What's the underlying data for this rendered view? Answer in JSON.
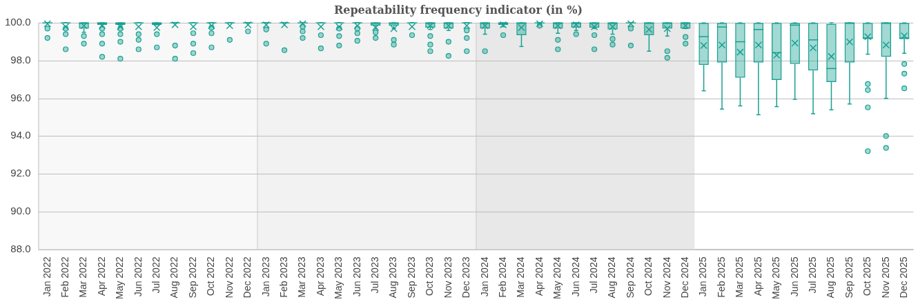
{
  "chart_data": {
    "type": "box",
    "title": "Repeatability frequency indicator (in %)",
    "categories": [
      "Jan 2022",
      "Feb 2022",
      "Mar 2022",
      "Apr 2022",
      "May 2022",
      "Jun 2022",
      "Jul 2022",
      "Aug 2022",
      "Sep 2022",
      "Oct 2022",
      "Nov 2022",
      "Dec 2022",
      "Jan 2023",
      "Feb 2023",
      "Mar 2023",
      "Apr 2023",
      "May 2023",
      "Jun 2023",
      "Jul 2023",
      "Aug 2023",
      "Sep 2023",
      "Oct 2023",
      "Nov 2023",
      "Dec 2023",
      "Jan 2024",
      "Feb 2024",
      "Mar 2024",
      "Apr 2024",
      "May 2024",
      "Jun 2024",
      "Jul 2024",
      "Aug 2024",
      "Sep 2024",
      "Oct 2024",
      "Nov 2024",
      "Dec 2024",
      "Jan 2025",
      "Feb 2025",
      "Mar 2025",
      "Apr 2025",
      "May 2025",
      "Jun 2025",
      "Jul 2025",
      "Aug 2025",
      "Sep 2025",
      "Oct 2025",
      "Nov 2025",
      "Dec 2025"
    ],
    "color": "#16a092",
    "boxes": [
      {
        "low": 100,
        "q1": 100,
        "median": 100,
        "q3": 100,
        "high": 100,
        "mean": 99.95,
        "outliers": [
          99.7,
          99.2
        ]
      },
      {
        "low": 100,
        "q1": 100,
        "median": 100,
        "q3": 100,
        "high": 100,
        "mean": 99.8,
        "outliers": [
          99.7,
          99.4,
          98.6
        ]
      },
      {
        "low": 99.5,
        "q1": 99.7,
        "median": 100,
        "q3": 100,
        "high": 100,
        "mean": 99.85,
        "outliers": [
          99.3,
          98.9
        ]
      },
      {
        "low": 99.8,
        "q1": 99.9,
        "median": 100,
        "q3": 100,
        "high": 100,
        "mean": 99.85,
        "outliers": [
          99.7,
          99.4,
          98.9,
          98.2
        ]
      },
      {
        "low": 99.8,
        "q1": 99.9,
        "median": 100,
        "q3": 100,
        "high": 100,
        "mean": 99.8,
        "outliers": [
          99.7,
          99.4,
          99.0,
          98.1
        ]
      },
      {
        "low": 100,
        "q1": 100,
        "median": 100,
        "q3": 100,
        "high": 100,
        "mean": 99.8,
        "outliers": [
          99.4,
          99.1,
          98.6
        ]
      },
      {
        "low": 99.9,
        "q1": 99.9,
        "median": 100,
        "q3": 100,
        "high": 100,
        "mean": 99.75,
        "outliers": [
          99.4,
          98.7
        ]
      },
      {
        "low": 100,
        "q1": 100,
        "median": 100,
        "q3": 100,
        "high": 100,
        "mean": 99.9,
        "outliers": [
          98.8,
          98.1
        ]
      },
      {
        "low": 100,
        "q1": 100,
        "median": 100,
        "q3": 100,
        "high": 100,
        "mean": 99.8,
        "outliers": [
          99.45,
          98.9,
          98.4
        ]
      },
      {
        "low": 100,
        "q1": 100,
        "median": 100,
        "q3": 100,
        "high": 100,
        "mean": 99.85,
        "outliers": [
          99.75,
          99.45,
          98.7
        ]
      },
      {
        "low": 100,
        "q1": 100,
        "median": 100,
        "q3": 100,
        "high": 100,
        "mean": 99.85,
        "outliers": [
          99.1
        ]
      },
      {
        "low": 100,
        "q1": 100,
        "median": 100,
        "q3": 100,
        "high": 100,
        "mean": 99.9,
        "outliers": [
          99.55
        ]
      },
      {
        "low": 100,
        "q1": 100,
        "median": 100,
        "q3": 100,
        "high": 100,
        "mean": 99.9,
        "outliers": [
          99.65,
          98.9
        ]
      },
      {
        "low": 100,
        "q1": 100,
        "median": 100,
        "q3": 100,
        "high": 100,
        "mean": 99.9,
        "outliers": [
          98.55
        ]
      },
      {
        "low": 100,
        "q1": 100,
        "median": 100,
        "q3": 100,
        "high": 100,
        "mean": 99.95,
        "outliers": [
          99.8,
          99.55,
          99.2
        ]
      },
      {
        "low": 100,
        "q1": 100,
        "median": 100,
        "q3": 100,
        "high": 100,
        "mean": 99.8,
        "outliers": [
          99.35,
          98.65
        ]
      },
      {
        "low": 100,
        "q1": 100,
        "median": 100,
        "q3": 100,
        "high": 100,
        "mean": 99.8,
        "outliers": [
          99.7,
          99.3,
          98.8
        ]
      },
      {
        "low": 100,
        "q1": 100,
        "median": 100,
        "q3": 100,
        "high": 100,
        "mean": 99.85,
        "outliers": [
          99.7,
          99.45,
          99.05
        ]
      },
      {
        "low": 99.7,
        "q1": 99.85,
        "median": 100,
        "q3": 100,
        "high": 100,
        "mean": 99.75,
        "outliers": [
          99.5,
          99.2
        ]
      },
      {
        "low": 99.7,
        "q1": 99.85,
        "median": 100,
        "q3": 100,
        "high": 100,
        "mean": 99.7,
        "outliers": [
          99.1,
          98.85
        ]
      },
      {
        "low": 100,
        "q1": 100,
        "median": 100,
        "q3": 100,
        "high": 100,
        "mean": 99.8,
        "outliers": [
          99.35
        ]
      },
      {
        "low": 99.65,
        "q1": 99.75,
        "median": 100,
        "q3": 100,
        "high": 100,
        "mean": 99.85,
        "outliers": [
          99.3,
          98.85,
          98.5
        ]
      },
      {
        "low": 99.6,
        "q1": 99.7,
        "median": 100,
        "q3": 100,
        "high": 100,
        "mean": 99.85,
        "outliers": [
          99.0,
          98.25
        ]
      },
      {
        "low": 100,
        "q1": 100,
        "median": 100,
        "q3": 100,
        "high": 100,
        "mean": 99.85,
        "outliers": [
          99.6,
          99.2,
          98.5
        ]
      },
      {
        "low": 99.4,
        "q1": 99.7,
        "median": 100,
        "q3": 100,
        "high": 100,
        "mean": 99.85,
        "outliers": [
          98.5
        ]
      },
      {
        "low": 99.8,
        "q1": 99.9,
        "median": 100,
        "q3": 100,
        "high": 100,
        "mean": 99.9,
        "outliers": [
          99.35
        ]
      },
      {
        "low": 98.75,
        "q1": 99.35,
        "median": 100,
        "q3": 100,
        "high": 100,
        "mean": 99.75
      },
      {
        "low": 100,
        "q1": 100,
        "median": 100,
        "q3": 100,
        "high": 100,
        "mean": 99.95,
        "outliers": [
          99.85
        ]
      },
      {
        "low": 99.45,
        "q1": 99.7,
        "median": 100,
        "q3": 100,
        "high": 100,
        "mean": 99.85,
        "outliers": [
          99.1,
          98.6
        ]
      },
      {
        "low": 99.6,
        "q1": 99.75,
        "median": 100,
        "q3": 100,
        "high": 100,
        "mean": 99.9,
        "outliers": [
          99.4
        ]
      },
      {
        "low": 99.7,
        "q1": 99.75,
        "median": 100,
        "q3": 100,
        "high": 100,
        "mean": 99.8,
        "outliers": [
          99.35,
          98.6
        ]
      },
      {
        "low": 99.4,
        "q1": 99.65,
        "median": 100,
        "q3": 100,
        "high": 100,
        "mean": 99.8,
        "outliers": [
          99.15,
          98.85
        ]
      },
      {
        "low": 100,
        "q1": 100,
        "median": 100,
        "q3": 100,
        "high": 100,
        "mean": 99.95,
        "outliers": [
          99.7,
          98.8
        ]
      },
      {
        "low": 98.5,
        "q1": 99.35,
        "median": 100,
        "q3": 100,
        "high": 100,
        "mean": 99.65
      },
      {
        "low": 99.3,
        "q1": 99.7,
        "median": 100,
        "q3": 100,
        "high": 100,
        "mean": 99.7,
        "outliers": [
          98.5,
          98.15
        ]
      },
      {
        "low": 99.7,
        "q1": 99.7,
        "median": 100,
        "q3": 100,
        "high": 100,
        "mean": 99.85,
        "outliers": [
          99.25,
          98.9
        ]
      },
      {
        "low": 96.4,
        "q1": 97.77,
        "median": 99.27,
        "q3": 100,
        "high": 100,
        "mean": 98.8
      },
      {
        "low": 95.43,
        "q1": 97.9,
        "median": 99.78,
        "q3": 100,
        "high": 100,
        "mean": 98.83
      },
      {
        "low": 95.6,
        "q1": 97.09,
        "median": 99.0,
        "q3": 100,
        "high": 100,
        "mean": 98.45
      },
      {
        "low": 95.13,
        "q1": 97.9,
        "median": 99.65,
        "q3": 100,
        "high": 100,
        "mean": 98.83
      },
      {
        "low": 95.56,
        "q1": 96.97,
        "median": 98.42,
        "q3": 100,
        "high": 100,
        "mean": 98.29
      },
      {
        "low": 95.95,
        "q1": 97.82,
        "median": 99.88,
        "q3": 100,
        "high": 100,
        "mean": 98.93
      },
      {
        "low": 95.18,
        "q1": 97.48,
        "median": 99.1,
        "q3": 100,
        "high": 100,
        "mean": 98.67
      },
      {
        "low": 95.39,
        "q1": 96.86,
        "median": 97.58,
        "q3": 99.95,
        "high": 100,
        "mean": 98.22
      },
      {
        "low": 95.7,
        "q1": 97.9,
        "median": 100,
        "q3": 100,
        "high": 100,
        "mean": 98.99
      },
      {
        "low": 98.34,
        "q1": 99.14,
        "median": 99.2,
        "q3": 100,
        "high": 100,
        "mean": 99.27,
        "outliers": [
          96.76,
          96.44,
          95.52,
          93.2
        ]
      },
      {
        "low": 96.0,
        "q1": 98.2,
        "median": 100,
        "q3": 100,
        "high": 100,
        "mean": 98.83,
        "outliers": [
          94.0,
          93.37
        ]
      },
      {
        "low": 98.39,
        "q1": 99.14,
        "median": 99.2,
        "q3": 100,
        "high": 100,
        "mean": 99.31,
        "outliers": [
          97.82,
          97.31,
          96.53
        ]
      }
    ],
    "ylim": [
      88,
      100
    ],
    "yticks": [
      {
        "value": 88,
        "label": "88.0"
      },
      {
        "value": 90,
        "label": "90.0"
      },
      {
        "value": 92,
        "label": "92.0"
      },
      {
        "value": 94,
        "label": "94.0"
      },
      {
        "value": 96,
        "label": "96.0"
      },
      {
        "value": 98,
        "label": "98.0"
      },
      {
        "value": 100,
        "label": "100.0"
      }
    ],
    "grid": "y",
    "bands": [
      {
        "axis": "x",
        "from": "Jan 2022",
        "to": "Dec 2022",
        "color": "#f8f8f8"
      },
      {
        "axis": "x",
        "from": "Jan 2023",
        "to": "Dec 2023",
        "color": "#f1f2f1"
      },
      {
        "axis": "x",
        "from": "Jan 2024",
        "to": "Dec 2024",
        "color": "#e7e8e7"
      }
    ]
  }
}
